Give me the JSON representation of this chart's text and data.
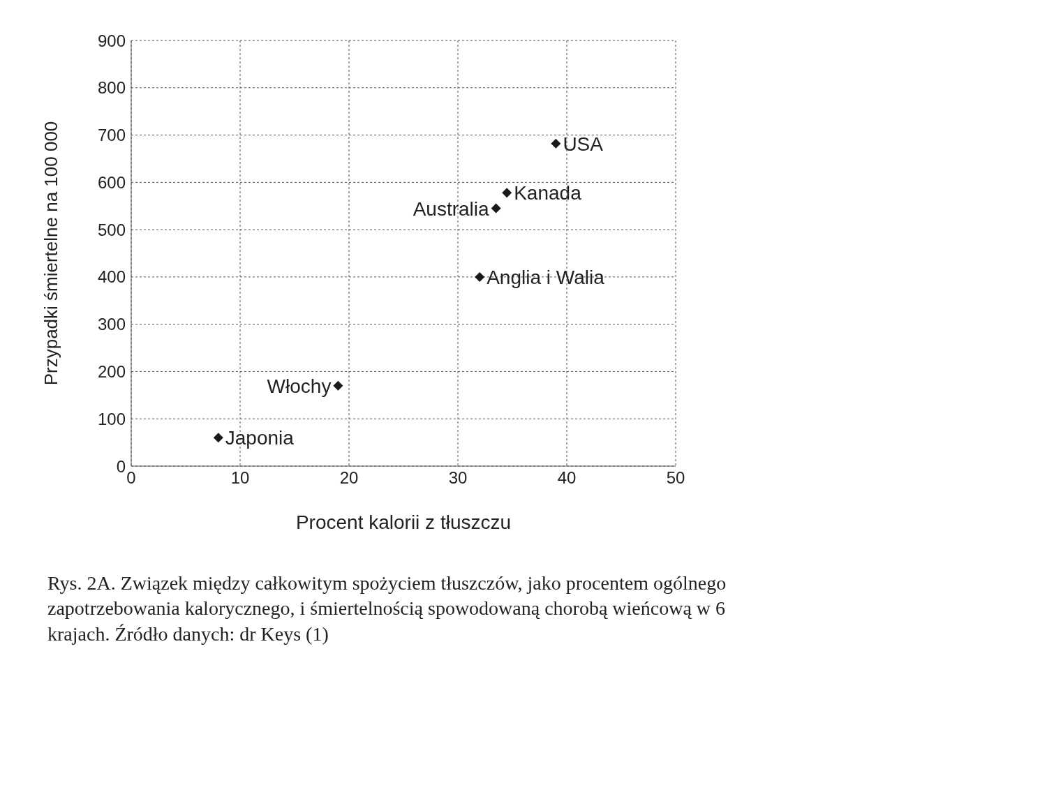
{
  "chart_data": {
    "type": "scatter",
    "xlabel": "Procent kalorii z tłuszczu",
    "ylabel": "Przypadki śmiertelne na 100 000",
    "x": [
      8,
      19,
      32,
      33.5,
      34.5,
      39
    ],
    "values": [
      60,
      170,
      400,
      545,
      578,
      682
    ],
    "color": "#1a1a1a",
    "marker": "diamond",
    "grid": true,
    "xlim": [
      0,
      50
    ],
    "xticks": [
      0,
      10,
      20,
      30,
      40,
      50
    ],
    "ylim": [
      0,
      900
    ],
    "yticks": [
      0,
      100,
      200,
      300,
      400,
      500,
      600,
      700,
      800,
      900
    ],
    "annotations": [
      {
        "text": "Japonia",
        "x": 8,
        "y": 60
      },
      {
        "text": "Włochy",
        "x": 19,
        "y": 170
      },
      {
        "text": "Anglia i Walia",
        "x": 32,
        "y": 400
      },
      {
        "text": "Australia",
        "x": 33.5,
        "y": 545
      },
      {
        "text": "Kanada",
        "x": 34.5,
        "y": 578
      },
      {
        "text": "USA",
        "x": 39,
        "y": 682
      },
      "Rys. 2A. Związek między całkowitym spożyciem tłuszczów, jako procentem ogólnego zapotrzebowania kalorycznego, i śmiertelnością spowodowaną chorobą wieńcową w 6 krajach. Źródło danych: dr Keys (1)"
    ]
  }
}
